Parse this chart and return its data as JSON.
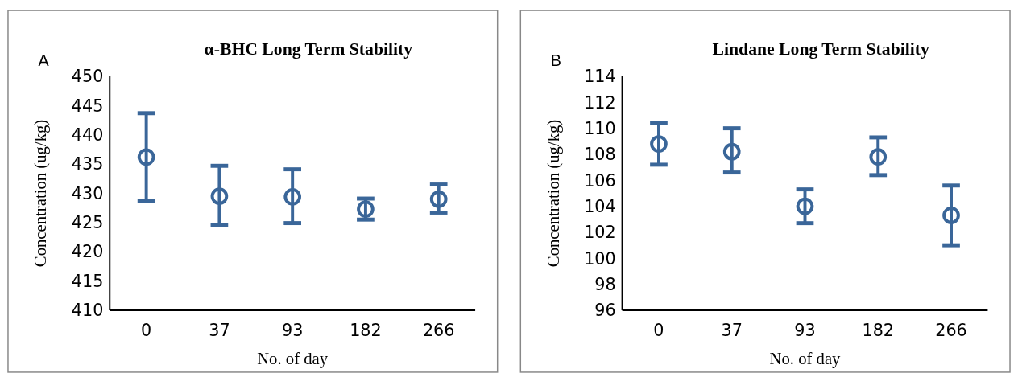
{
  "chart_data": [
    {
      "type": "scatter",
      "title": "α-BHC Long Term Stability",
      "xlabel": "No. of day",
      "ylabel": "Concentration  (ug/kg)",
      "annotations": [
        "A"
      ],
      "categories": [
        "0",
        "37",
        "93",
        "182",
        "266"
      ],
      "series": [
        {
          "color": "#3a6699",
          "values": [
            436.2,
            429.5,
            429.4,
            427.3,
            429.0
          ],
          "errors": [
            [
              428.7,
              443.7
            ],
            [
              424.6,
              434.7
            ],
            [
              424.9,
              434.1
            ],
            [
              425.5,
              429.1
            ],
            [
              426.7,
              431.5
            ]
          ]
        }
      ],
      "ylim": [
        410,
        450
      ],
      "yticks": [
        410,
        415,
        420,
        425,
        430,
        435,
        440,
        445,
        450
      ],
      "marker": "circle"
    },
    {
      "type": "scatter",
      "title": "Lindane Long Term Stability",
      "xlabel": "No. of day",
      "ylabel": "Concentration  (ug/kg)",
      "annotations": [
        "B"
      ],
      "categories": [
        "0",
        "37",
        "93",
        "182",
        "266"
      ],
      "series": [
        {
          "color": "#3a6699",
          "values": [
            108.8,
            108.2,
            104.0,
            107.8,
            103.3
          ],
          "errors": [
            [
              107.2,
              110.4
            ],
            [
              106.6,
              110.0
            ],
            [
              102.7,
              105.3
            ],
            [
              106.4,
              109.3
            ],
            [
              101.0,
              105.6
            ]
          ]
        }
      ],
      "ylim": [
        96,
        114
      ],
      "yticks": [
        96,
        98,
        100,
        102,
        104,
        106,
        108,
        110,
        112,
        114
      ],
      "marker": "circle"
    }
  ]
}
